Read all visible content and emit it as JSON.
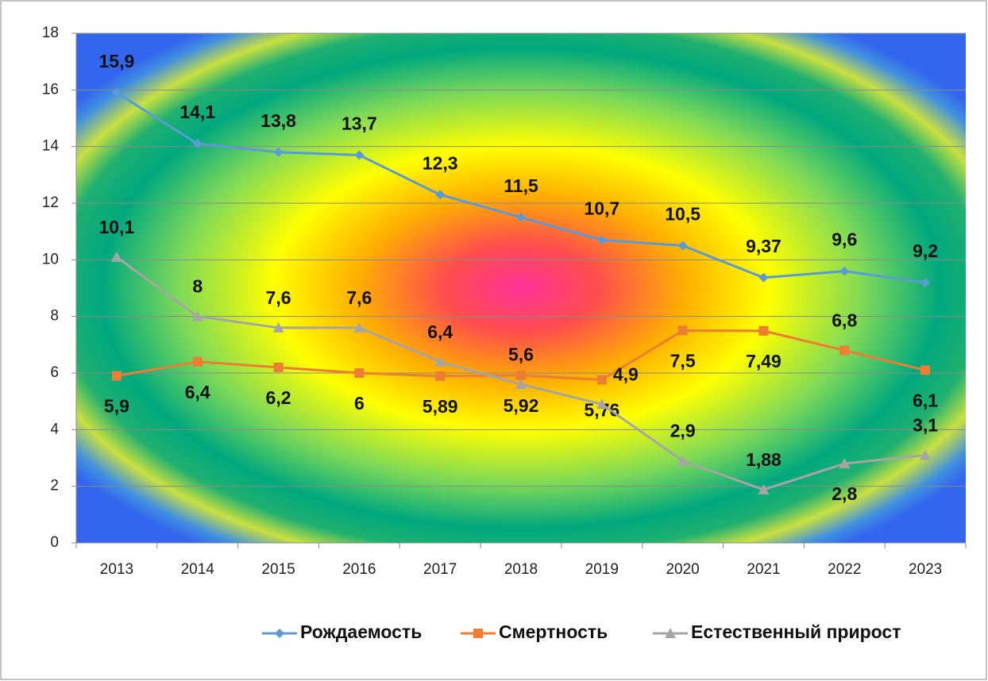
{
  "chart_data": {
    "type": "line",
    "categories": [
      "2013",
      "2014",
      "2015",
      "2016",
      "2017",
      "2018",
      "2019",
      "2020",
      "2021",
      "2022",
      "2023"
    ],
    "series": [
      {
        "name": "Рождаемость",
        "color": "#5b9bd5",
        "marker": "diamond",
        "values": [
          15.9,
          14.1,
          13.8,
          13.7,
          12.3,
          11.5,
          10.7,
          10.5,
          9.37,
          9.6,
          9.2
        ],
        "value_labels": [
          "15,9",
          "14,1",
          "13,8",
          "13,7",
          "12,3",
          "11,5",
          "10,7",
          "10,5",
          "9,37",
          "9,6",
          "9,2"
        ]
      },
      {
        "name": "Смертность",
        "color": "#ed7d31",
        "marker": "square",
        "values": [
          5.9,
          6.4,
          6.2,
          6,
          5.89,
          5.92,
          5.76,
          7.5,
          7.49,
          6.8,
          6.1
        ],
        "value_labels": [
          "5,9",
          "6,4",
          "6,2",
          "6",
          "5,89",
          "5,92",
          "5,76",
          "7,5",
          "7,49",
          "6,8",
          "6,1"
        ]
      },
      {
        "name": "Естественный прирост",
        "color": "#a5a5a5",
        "marker": "triangle",
        "values": [
          10.1,
          8,
          7.6,
          7.6,
          6.4,
          5.6,
          4.9,
          2.9,
          1.88,
          2.8,
          3.1
        ],
        "value_labels": [
          "10,1",
          "8",
          "7,6",
          "7,6",
          "6,4",
          "5,6",
          "4,9",
          "2,9",
          "1,88",
          "2,8",
          "3,1"
        ]
      }
    ],
    "ylim": [
      0,
      18
    ],
    "yticks": [
      0,
      2,
      4,
      6,
      8,
      10,
      12,
      14,
      16,
      18
    ],
    "grid": true,
    "legend": "bottom"
  }
}
